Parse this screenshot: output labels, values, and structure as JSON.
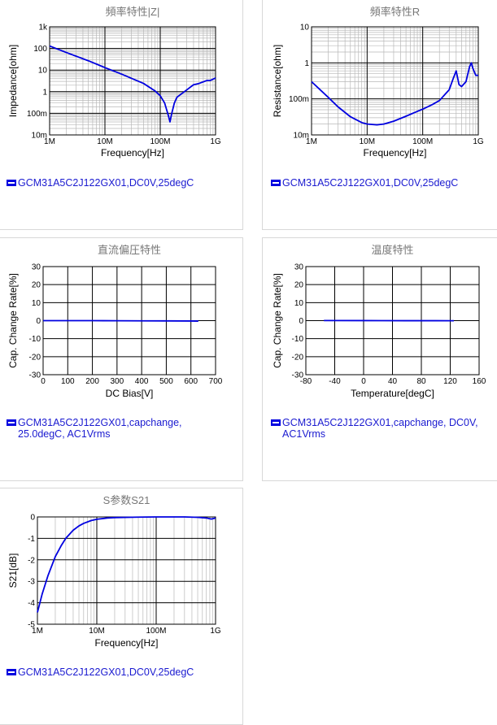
{
  "colors": {
    "series": "#0000e0",
    "grid_major": "#000000",
    "grid_minor": "#b8b8b8",
    "title": "#777777",
    "legend_text": "#1a1ad0"
  },
  "chart_data": [
    {
      "id": "impedance",
      "type": "line",
      "title": "頻率特性|Z|",
      "xlabel": "Frequency[Hz]",
      "ylabel": "Impedance[ohm]",
      "xscale": "log",
      "yscale": "log",
      "xlim": [
        1000000,
        1000000000
      ],
      "ylim": [
        0.01,
        1000
      ],
      "x_ticks": [
        {
          "v": 1000000,
          "l": "1M"
        },
        {
          "v": 10000000,
          "l": "10M"
        },
        {
          "v": 100000000,
          "l": "100M"
        },
        {
          "v": 1000000000,
          "l": "1G"
        }
      ],
      "y_ticks": [
        {
          "v": 0.01,
          "l": "10m"
        },
        {
          "v": 0.1,
          "l": "100m"
        },
        {
          "v": 1,
          "l": "1"
        },
        {
          "v": 10,
          "l": "10"
        },
        {
          "v": 100,
          "l": "100"
        },
        {
          "v": 1000,
          "l": "1k"
        }
      ],
      "grid": true,
      "legend": "GCM31A5C2J122GX01,DC0V,25degC",
      "series": [
        {
          "name": "GCM31A5C2J122GX01,DC0V,25degC",
          "x": [
            1000000,
            2000000,
            5000000,
            10000000,
            20000000,
            50000000,
            80000000,
            100000000,
            120000000,
            140000000,
            150000000,
            160000000,
            180000000,
            200000000,
            300000000,
            400000000,
            500000000,
            700000000,
            800000000,
            900000000,
            1000000000
          ],
          "y": [
            130,
            65,
            27,
            13,
            6.5,
            2.4,
            1.1,
            0.65,
            0.3,
            0.08,
            0.04,
            0.09,
            0.3,
            0.55,
            1.2,
            2.1,
            2.4,
            3.3,
            3.3,
            3.8,
            4.3
          ]
        }
      ]
    },
    {
      "id": "resistance",
      "type": "line",
      "title": "頻率特性R",
      "xlabel": "Frequency[Hz]",
      "ylabel": "Resistance[ohm]",
      "xscale": "log",
      "yscale": "log",
      "xlim": [
        1000000,
        1000000000
      ],
      "ylim": [
        0.01,
        10
      ],
      "x_ticks": [
        {
          "v": 1000000,
          "l": "1M"
        },
        {
          "v": 10000000,
          "l": "10M"
        },
        {
          "v": 100000000,
          "l": "100M"
        },
        {
          "v": 1000000000,
          "l": "1G"
        }
      ],
      "y_ticks": [
        {
          "v": 0.01,
          "l": "10m"
        },
        {
          "v": 0.1,
          "l": "100m"
        },
        {
          "v": 1,
          "l": "1"
        },
        {
          "v": 10,
          "l": "10"
        }
      ],
      "grid": true,
      "legend": "GCM31A5C2J122GX01,DC0V,25degC",
      "series": [
        {
          "name": "GCM31A5C2J122GX01,DC0V,25degC",
          "x": [
            1000000,
            2000000,
            3000000,
            5000000,
            8000000,
            10000000,
            15000000,
            20000000,
            30000000,
            50000000,
            80000000,
            100000000,
            150000000,
            200000000,
            300000000,
            350000000,
            400000000,
            450000000,
            500000000,
            600000000,
            700000000,
            750000000,
            800000000,
            900000000,
            1000000000
          ],
          "y": [
            0.3,
            0.11,
            0.06,
            0.032,
            0.022,
            0.02,
            0.019,
            0.02,
            0.024,
            0.033,
            0.045,
            0.052,
            0.07,
            0.09,
            0.18,
            0.35,
            0.6,
            0.25,
            0.22,
            0.3,
            0.8,
            1.0,
            0.7,
            0.45,
            0.45
          ]
        }
      ]
    },
    {
      "id": "dcbias",
      "type": "line",
      "title": "直流偏圧特性",
      "xlabel": "DC Bias[V]",
      "ylabel": "Cap. Change Rate[%]",
      "xscale": "linear",
      "yscale": "linear",
      "xlim": [
        0,
        700
      ],
      "ylim": [
        -30,
        30
      ],
      "x_ticks": [
        {
          "v": 0,
          "l": "0"
        },
        {
          "v": 100,
          "l": "100"
        },
        {
          "v": 200,
          "l": "200"
        },
        {
          "v": 300,
          "l": "300"
        },
        {
          "v": 400,
          "l": "400"
        },
        {
          "v": 500,
          "l": "500"
        },
        {
          "v": 600,
          "l": "600"
        },
        {
          "v": 700,
          "l": "700"
        }
      ],
      "y_ticks": [
        {
          "v": -30,
          "l": "-30"
        },
        {
          "v": -20,
          "l": "-20"
        },
        {
          "v": -10,
          "l": "-10"
        },
        {
          "v": 0,
          "l": "0"
        },
        {
          "v": 10,
          "l": "10"
        },
        {
          "v": 20,
          "l": "20"
        },
        {
          "v": 30,
          "l": "30"
        }
      ],
      "grid": true,
      "legend": "GCM31A5C2J122GX01,capchange, 25.0degC, AC1Vrms",
      "series": [
        {
          "name": "GCM31A5C2J122GX01,capchange, 25.0degC, AC1Vrms",
          "x": [
            0,
            100,
            200,
            300,
            400,
            500,
            600,
            630
          ],
          "y": [
            0,
            0,
            0,
            -0.05,
            -0.1,
            -0.15,
            -0.2,
            -0.25
          ]
        }
      ]
    },
    {
      "id": "temperature",
      "type": "line",
      "title": "温度特性",
      "xlabel": "Temperature[degC]",
      "ylabel": "Cap. Change Rate[%]",
      "xscale": "linear",
      "yscale": "linear",
      "xlim": [
        -80,
        160
      ],
      "ylim": [
        -30,
        30
      ],
      "x_ticks": [
        {
          "v": -80,
          "l": "-80"
        },
        {
          "v": -40,
          "l": "-40"
        },
        {
          "v": 0,
          "l": "0"
        },
        {
          "v": 40,
          "l": "40"
        },
        {
          "v": 80,
          "l": "80"
        },
        {
          "v": 120,
          "l": "120"
        },
        {
          "v": 160,
          "l": "160"
        }
      ],
      "y_ticks": [
        {
          "v": -30,
          "l": "-30"
        },
        {
          "v": -20,
          "l": "-20"
        },
        {
          "v": -10,
          "l": "-10"
        },
        {
          "v": 0,
          "l": "0"
        },
        {
          "v": 10,
          "l": "10"
        },
        {
          "v": 20,
          "l": "20"
        },
        {
          "v": 30,
          "l": "30"
        }
      ],
      "grid": true,
      "legend": "GCM31A5C2J122GX01,capchange, DC0V, AC1Vrms",
      "series": [
        {
          "name": "GCM31A5C2J122GX01,capchange, DC0V, AC1Vrms",
          "x": [
            -55,
            0,
            25,
            60,
            100,
            125
          ],
          "y": [
            0.05,
            0.02,
            0,
            -0.02,
            -0.03,
            -0.04
          ]
        }
      ]
    },
    {
      "id": "s21",
      "type": "line",
      "title": "S参数S21",
      "xlabel": "Frequency[Hz]",
      "ylabel": "S21[dB]",
      "xscale": "log",
      "yscale": "linear",
      "xlim": [
        1000000,
        1000000000
      ],
      "ylim": [
        -5,
        0
      ],
      "x_ticks": [
        {
          "v": 1000000,
          "l": "1M"
        },
        {
          "v": 10000000,
          "l": "10M"
        },
        {
          "v": 100000000,
          "l": "100M"
        },
        {
          "v": 1000000000,
          "l": "1G"
        }
      ],
      "y_ticks": [
        {
          "v": -5,
          "l": "-5"
        },
        {
          "v": -4,
          "l": "-4"
        },
        {
          "v": -3,
          "l": "-3"
        },
        {
          "v": -2,
          "l": "-2"
        },
        {
          "v": -1,
          "l": "-1"
        },
        {
          "v": 0,
          "l": "0"
        }
      ],
      "grid": true,
      "legend": "GCM31A5C2J122GX01,DC0V,25degC",
      "series": [
        {
          "name": "GCM31A5C2J122GX01,DC0V,25degC",
          "x": [
            1000000,
            1200000,
            1500000,
            2000000,
            2500000,
            3000000,
            4000000,
            5000000,
            6000000,
            8000000,
            10000000,
            15000000,
            20000000,
            50000000,
            100000000,
            300000000,
            500000000,
            700000000,
            850000000,
            1000000000
          ],
          "y": [
            -4.45,
            -3.6,
            -2.75,
            -1.85,
            -1.35,
            -1.0,
            -0.62,
            -0.42,
            -0.3,
            -0.17,
            -0.11,
            -0.05,
            -0.03,
            -0.01,
            0,
            0,
            -0.02,
            -0.05,
            -0.1,
            -0.05
          ]
        }
      ]
    }
  ]
}
